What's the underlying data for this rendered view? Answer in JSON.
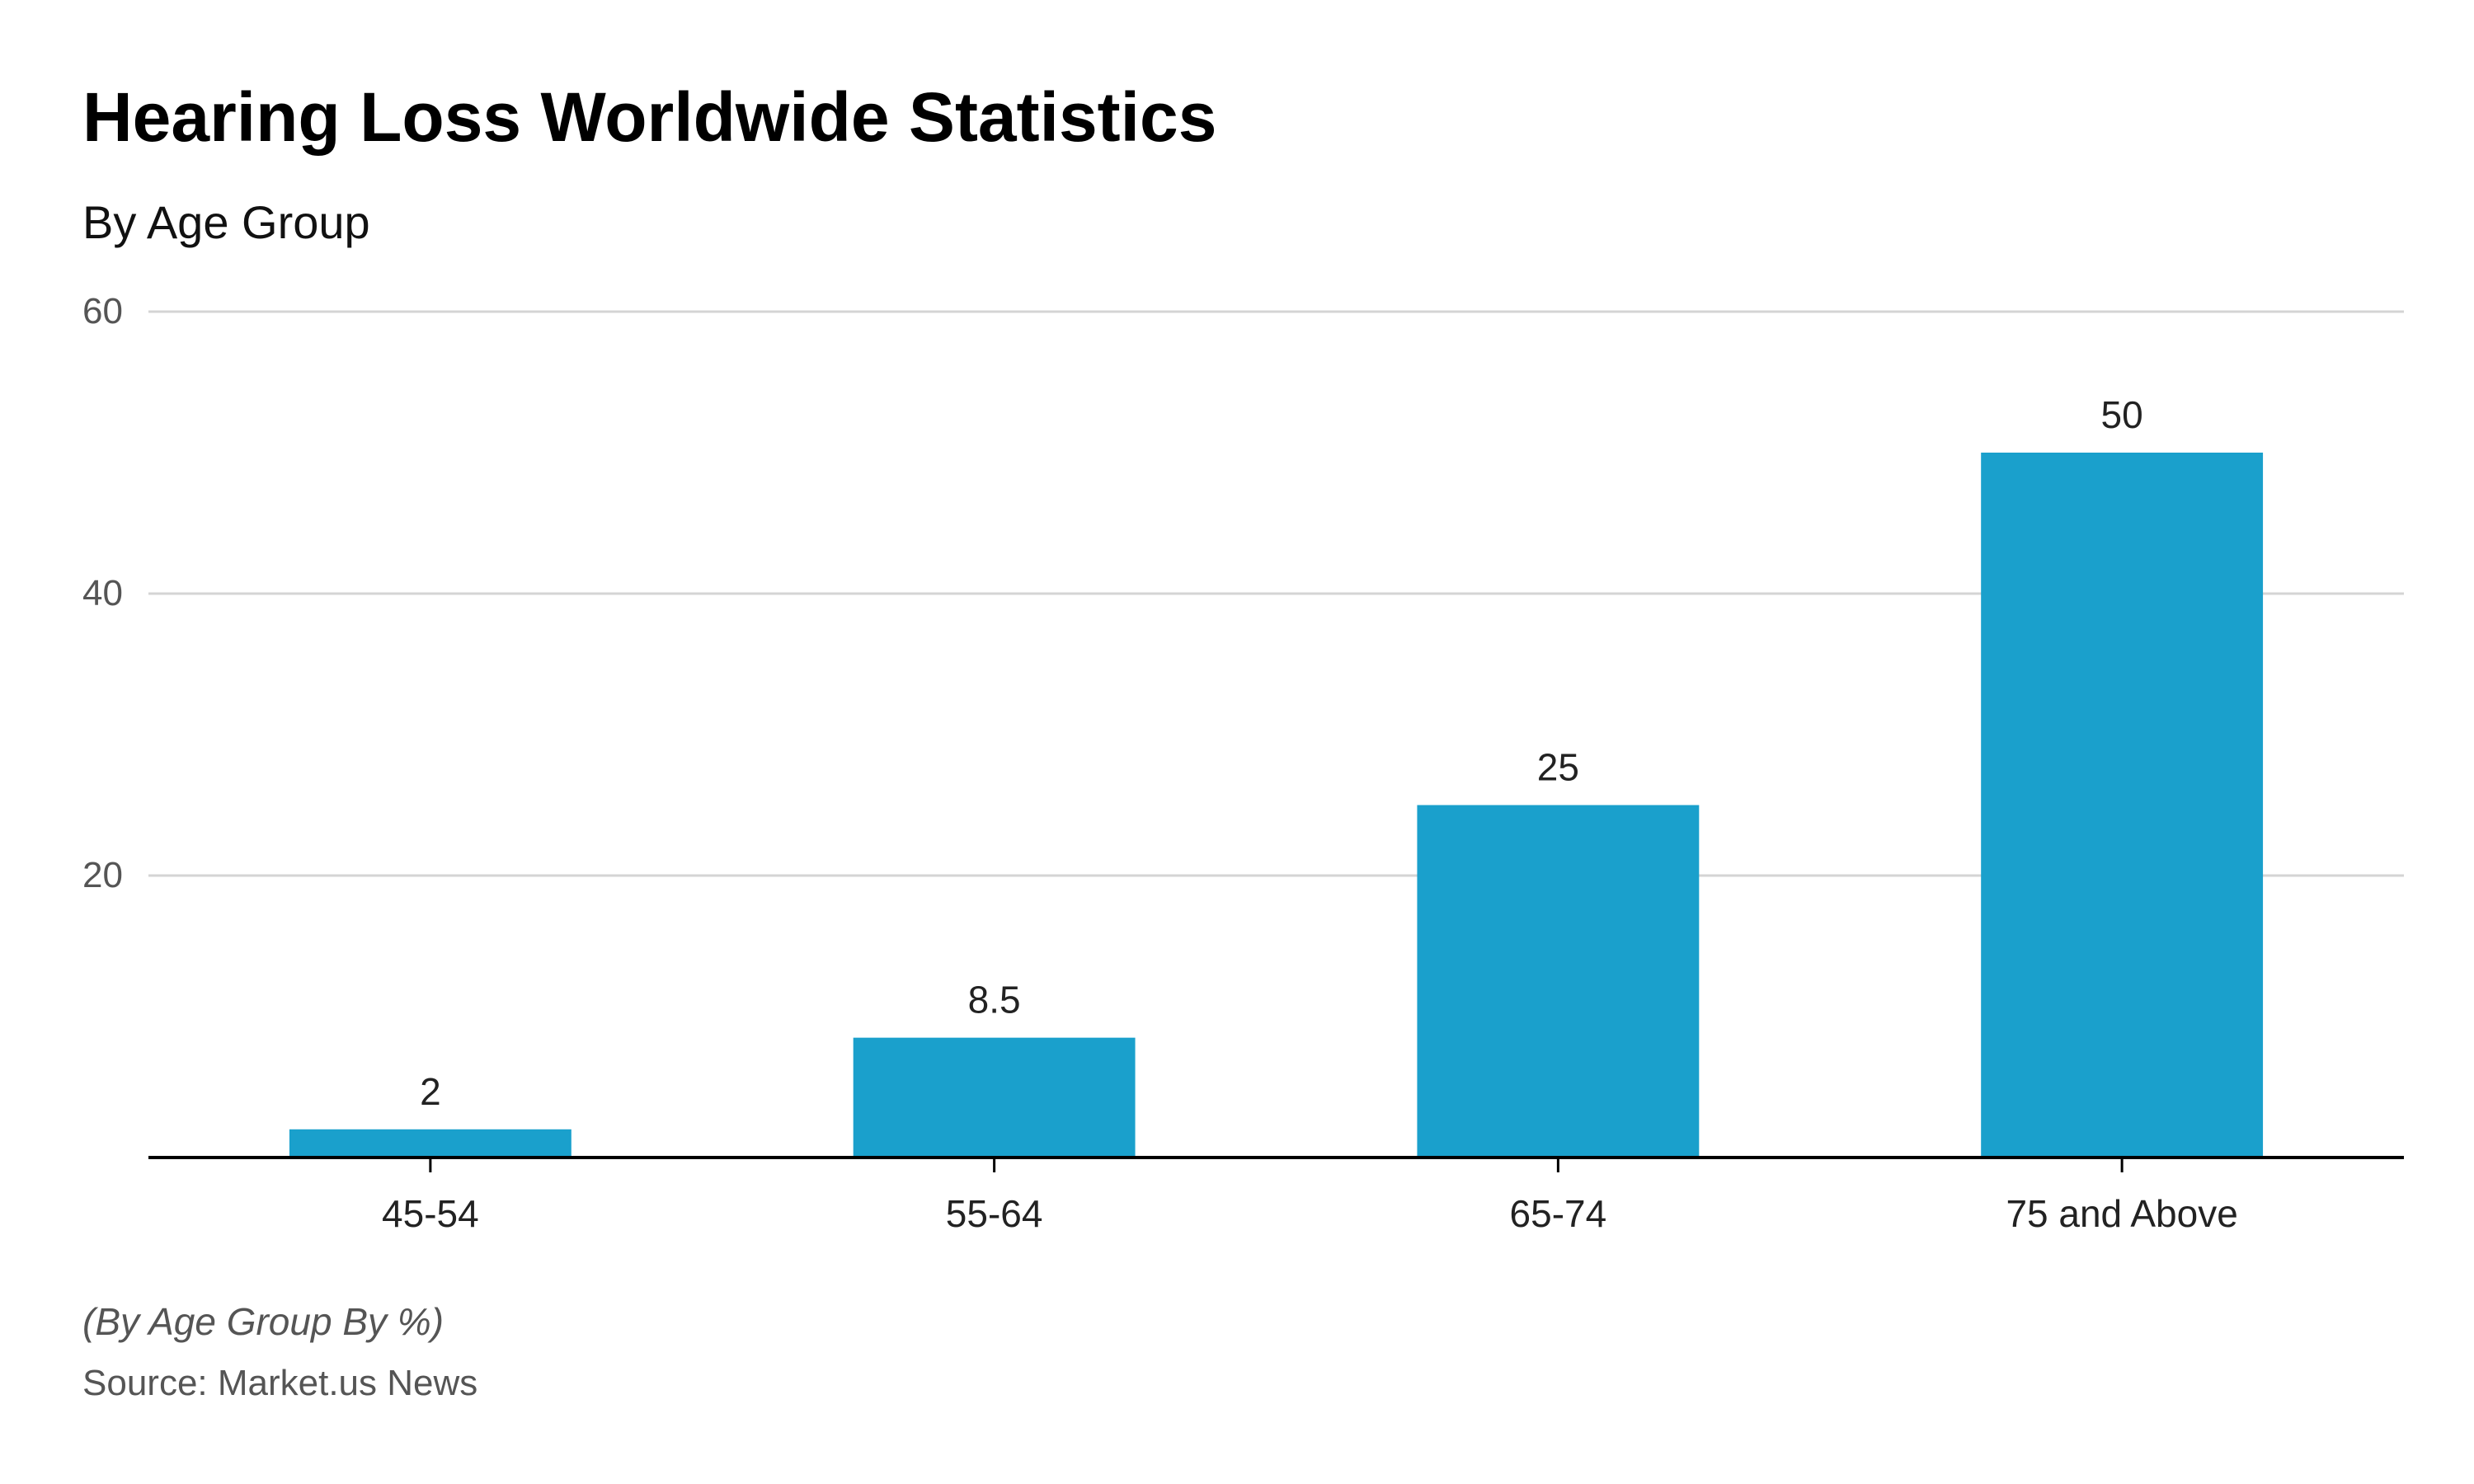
{
  "chart_data": {
    "type": "bar",
    "title": "Hearing Loss Worldwide Statistics",
    "subtitle": "By Age Group",
    "categories": [
      "45-54",
      "55-64",
      "65-74",
      "75 and Above"
    ],
    "values": [
      2,
      8.5,
      25,
      50
    ],
    "data_labels": [
      "2",
      "8.5",
      "25",
      "50"
    ],
    "ylim": [
      0,
      60
    ],
    "yticks": [
      20,
      40,
      60
    ],
    "xlabel": "",
    "ylabel": "",
    "grid": true,
    "bar_color": "#1aa0cc"
  },
  "footer": {
    "note": "(By Age Group By %)",
    "source": "Source: Market.us News"
  }
}
